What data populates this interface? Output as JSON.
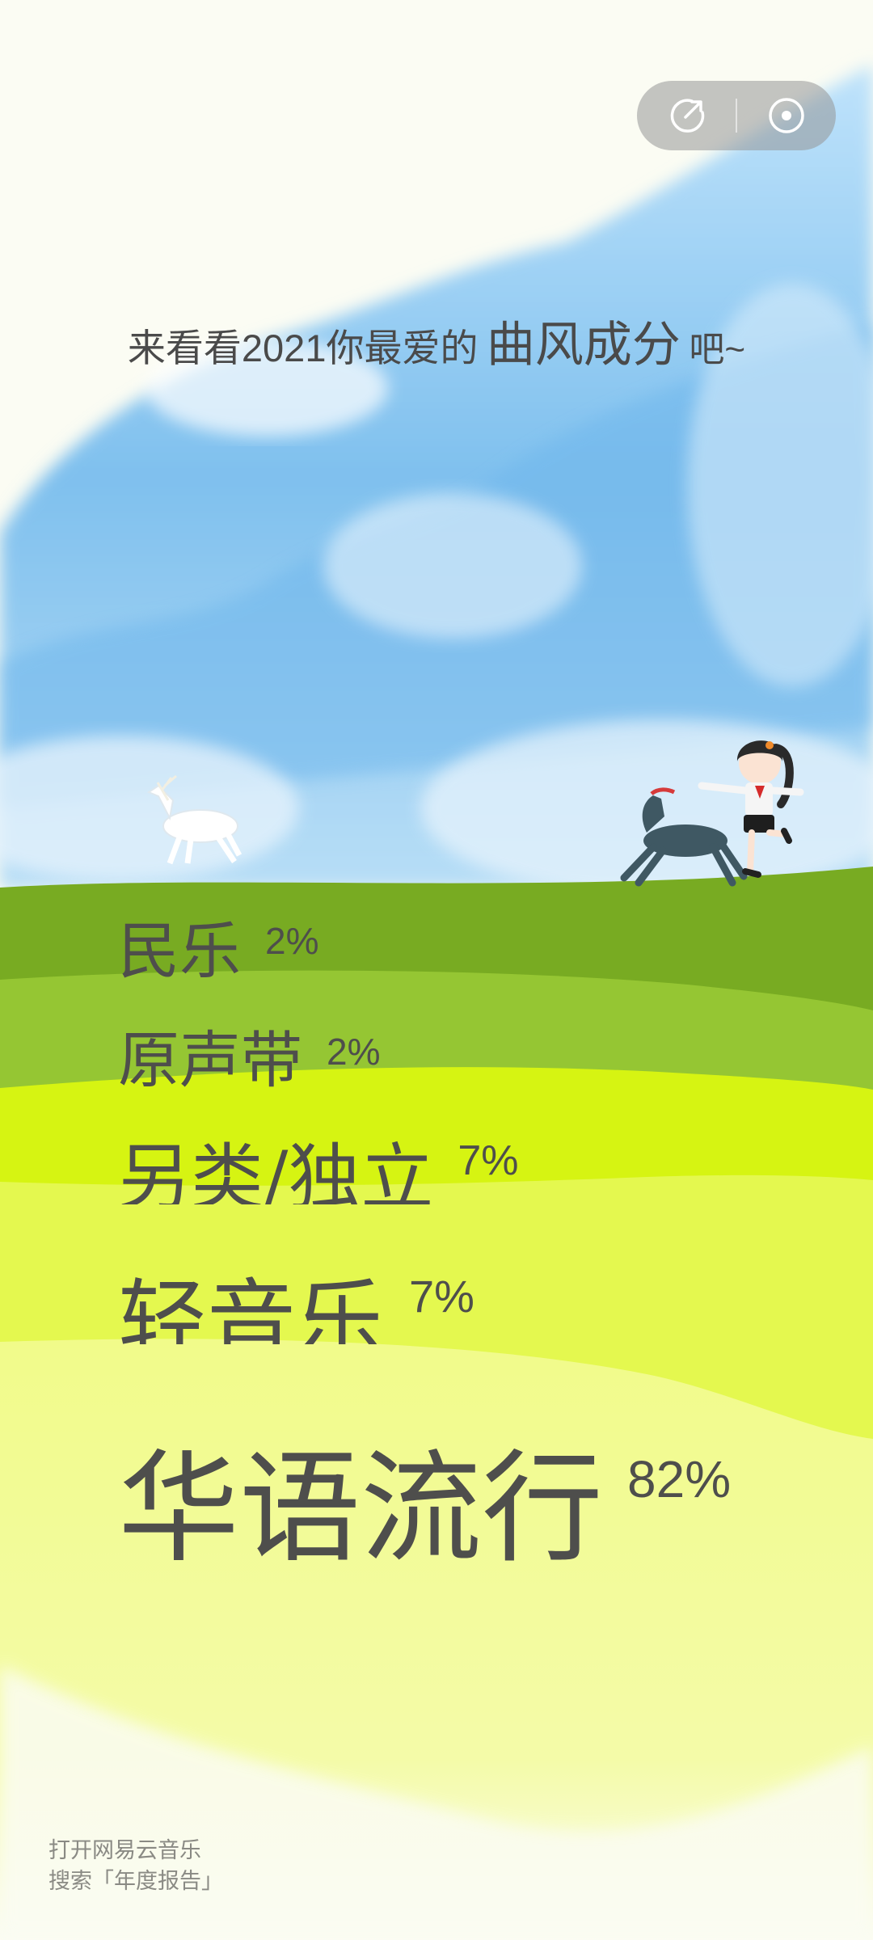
{
  "toolbar": {
    "share_icon": "share-arrow-icon",
    "music_icon": "disc-icon"
  },
  "heading": {
    "prefix": "来看看2021你最爱的",
    "emphasis": "曲风成分",
    "suffix": "吧~"
  },
  "genres": [
    {
      "name": "民乐",
      "percent": "2%"
    },
    {
      "name": "原声带",
      "percent": "2%"
    },
    {
      "name": "另类/独立",
      "percent": "7%"
    },
    {
      "name": "轻音乐",
      "percent": "7%"
    },
    {
      "name": "华语流行",
      "percent": "82%"
    }
  ],
  "footer": {
    "line1": "打开网易云音乐",
    "line2": "搜索「年度报告」"
  },
  "colors": {
    "sky_blue": "#7fc0ee",
    "band_1": "#78ab22",
    "band_2": "#95c633",
    "band_3": "#d6f412",
    "band_4": "#e4f84f",
    "band_5": "#f1fb8a",
    "text": "#4e4e4c"
  }
}
